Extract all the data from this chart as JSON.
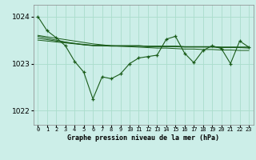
{
  "title": "Graphe pression niveau de la mer (hPa)",
  "bg_color": "#cceee8",
  "grid_color": "#aaddcc",
  "line_color": "#1a5c1a",
  "marker_color": "#1a5c1a",
  "ylim": [
    1021.7,
    1024.25
  ],
  "yticks": [
    1022,
    1023,
    1024
  ],
  "xlim": [
    -0.5,
    23.5
  ],
  "main_series": [
    1024.0,
    1023.7,
    1023.55,
    1023.38,
    1023.05,
    1022.82,
    1022.25,
    1022.72,
    1022.68,
    1022.78,
    1023.0,
    1023.12,
    1023.15,
    1023.18,
    1023.52,
    1023.58,
    1023.22,
    1023.02,
    1023.28,
    1023.38,
    1023.32,
    1023.0,
    1023.48,
    1023.35
  ],
  "smooth_line1": [
    1023.6,
    1023.57,
    1023.54,
    1023.51,
    1023.48,
    1023.45,
    1023.42,
    1023.4,
    1023.38,
    1023.37,
    1023.36,
    1023.35,
    1023.34,
    1023.33,
    1023.33,
    1023.32,
    1023.31,
    1023.31,
    1023.3,
    1023.3,
    1023.29,
    1023.29,
    1023.28,
    1023.28
  ],
  "smooth_line2": [
    1023.58,
    1023.54,
    1023.5,
    1023.46,
    1023.43,
    1023.4,
    1023.38,
    1023.38,
    1023.37,
    1023.37,
    1023.37,
    1023.37,
    1023.36,
    1023.36,
    1023.36,
    1023.36,
    1023.35,
    1023.35,
    1023.35,
    1023.35,
    1023.34,
    1023.34,
    1023.34,
    1023.33
  ],
  "smooth_line3": [
    1023.54,
    1023.51,
    1023.48,
    1023.45,
    1023.43,
    1023.41,
    1023.39,
    1023.39,
    1023.38,
    1023.38,
    1023.38,
    1023.38,
    1023.37,
    1023.37,
    1023.37,
    1023.37,
    1023.36,
    1023.36,
    1023.36,
    1023.36,
    1023.35,
    1023.35,
    1023.35,
    1023.35
  ],
  "smooth_line4": [
    1023.5,
    1023.48,
    1023.46,
    1023.44,
    1023.42,
    1023.4,
    1023.39,
    1023.38,
    1023.38,
    1023.38,
    1023.38,
    1023.38,
    1023.37,
    1023.37,
    1023.37,
    1023.37,
    1023.36,
    1023.36,
    1023.36,
    1023.36,
    1023.35,
    1023.35,
    1023.35,
    1023.35
  ],
  "xlabel_fontsize": 6.0,
  "ylabel_fontsize": 6.5,
  "xtick_fontsize": 5.0,
  "ytick_fontsize": 6.5
}
